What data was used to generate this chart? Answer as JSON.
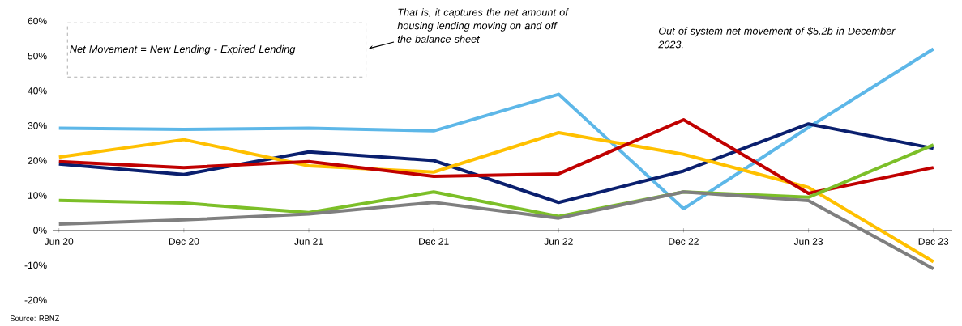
{
  "chart_data": {
    "type": "line",
    "categories": [
      "Jun 20",
      "Dec 20",
      "Jun 21",
      "Dec 21",
      "Jun 22",
      "Dec 22",
      "Jun 23",
      "Dec 23"
    ],
    "series": [
      {
        "color": "#5db7e8",
        "values": [
          29.3,
          28.9,
          29.3,
          28.5,
          39,
          6.2,
          29.5,
          52
        ]
      },
      {
        "color": "#0a1f6e",
        "values": [
          19,
          16,
          22.5,
          20,
          8,
          17,
          30.5,
          23.5
        ]
      },
      {
        "color": "#ffc000",
        "values": [
          21,
          26,
          18.5,
          16.7,
          28,
          21.8,
          12.3,
          -9
        ]
      },
      {
        "color": "#c00000",
        "values": [
          19.7,
          18,
          19.7,
          15.5,
          16.2,
          31.7,
          10.6,
          18
        ]
      },
      {
        "color": "#7cbf28",
        "values": [
          8.6,
          7.8,
          5.1,
          11,
          4,
          11,
          9.5,
          24.5
        ]
      },
      {
        "color": "#7f7f7f",
        "values": [
          1.8,
          3,
          4.7,
          8,
          3.5,
          11,
          8.5,
          -11
        ]
      }
    ],
    "ylim": [
      -20,
      60
    ],
    "yticks": [
      {
        "value": -20,
        "label": "-20%"
      },
      {
        "value": -10,
        "label": "-10%"
      },
      {
        "value": 0,
        "label": "0%"
      },
      {
        "value": 10,
        "label": "10%"
      },
      {
        "value": 20,
        "label": "20%"
      },
      {
        "value": 30,
        "label": "30%"
      },
      {
        "value": 40,
        "label": "40%"
      },
      {
        "value": 50,
        "label": "50%"
      },
      {
        "value": 60,
        "label": "60%"
      }
    ],
    "grid": false,
    "marker": "none",
    "line_style": "solid",
    "annotations": [
      "Net Movement = New Lending - Expired Lending",
      "That is, it captures the net amount of housing lending moving on and off the balance sheet",
      "Out of system net movement of $5.2b in December 2023.",
      "Source: RBNZ"
    ]
  }
}
